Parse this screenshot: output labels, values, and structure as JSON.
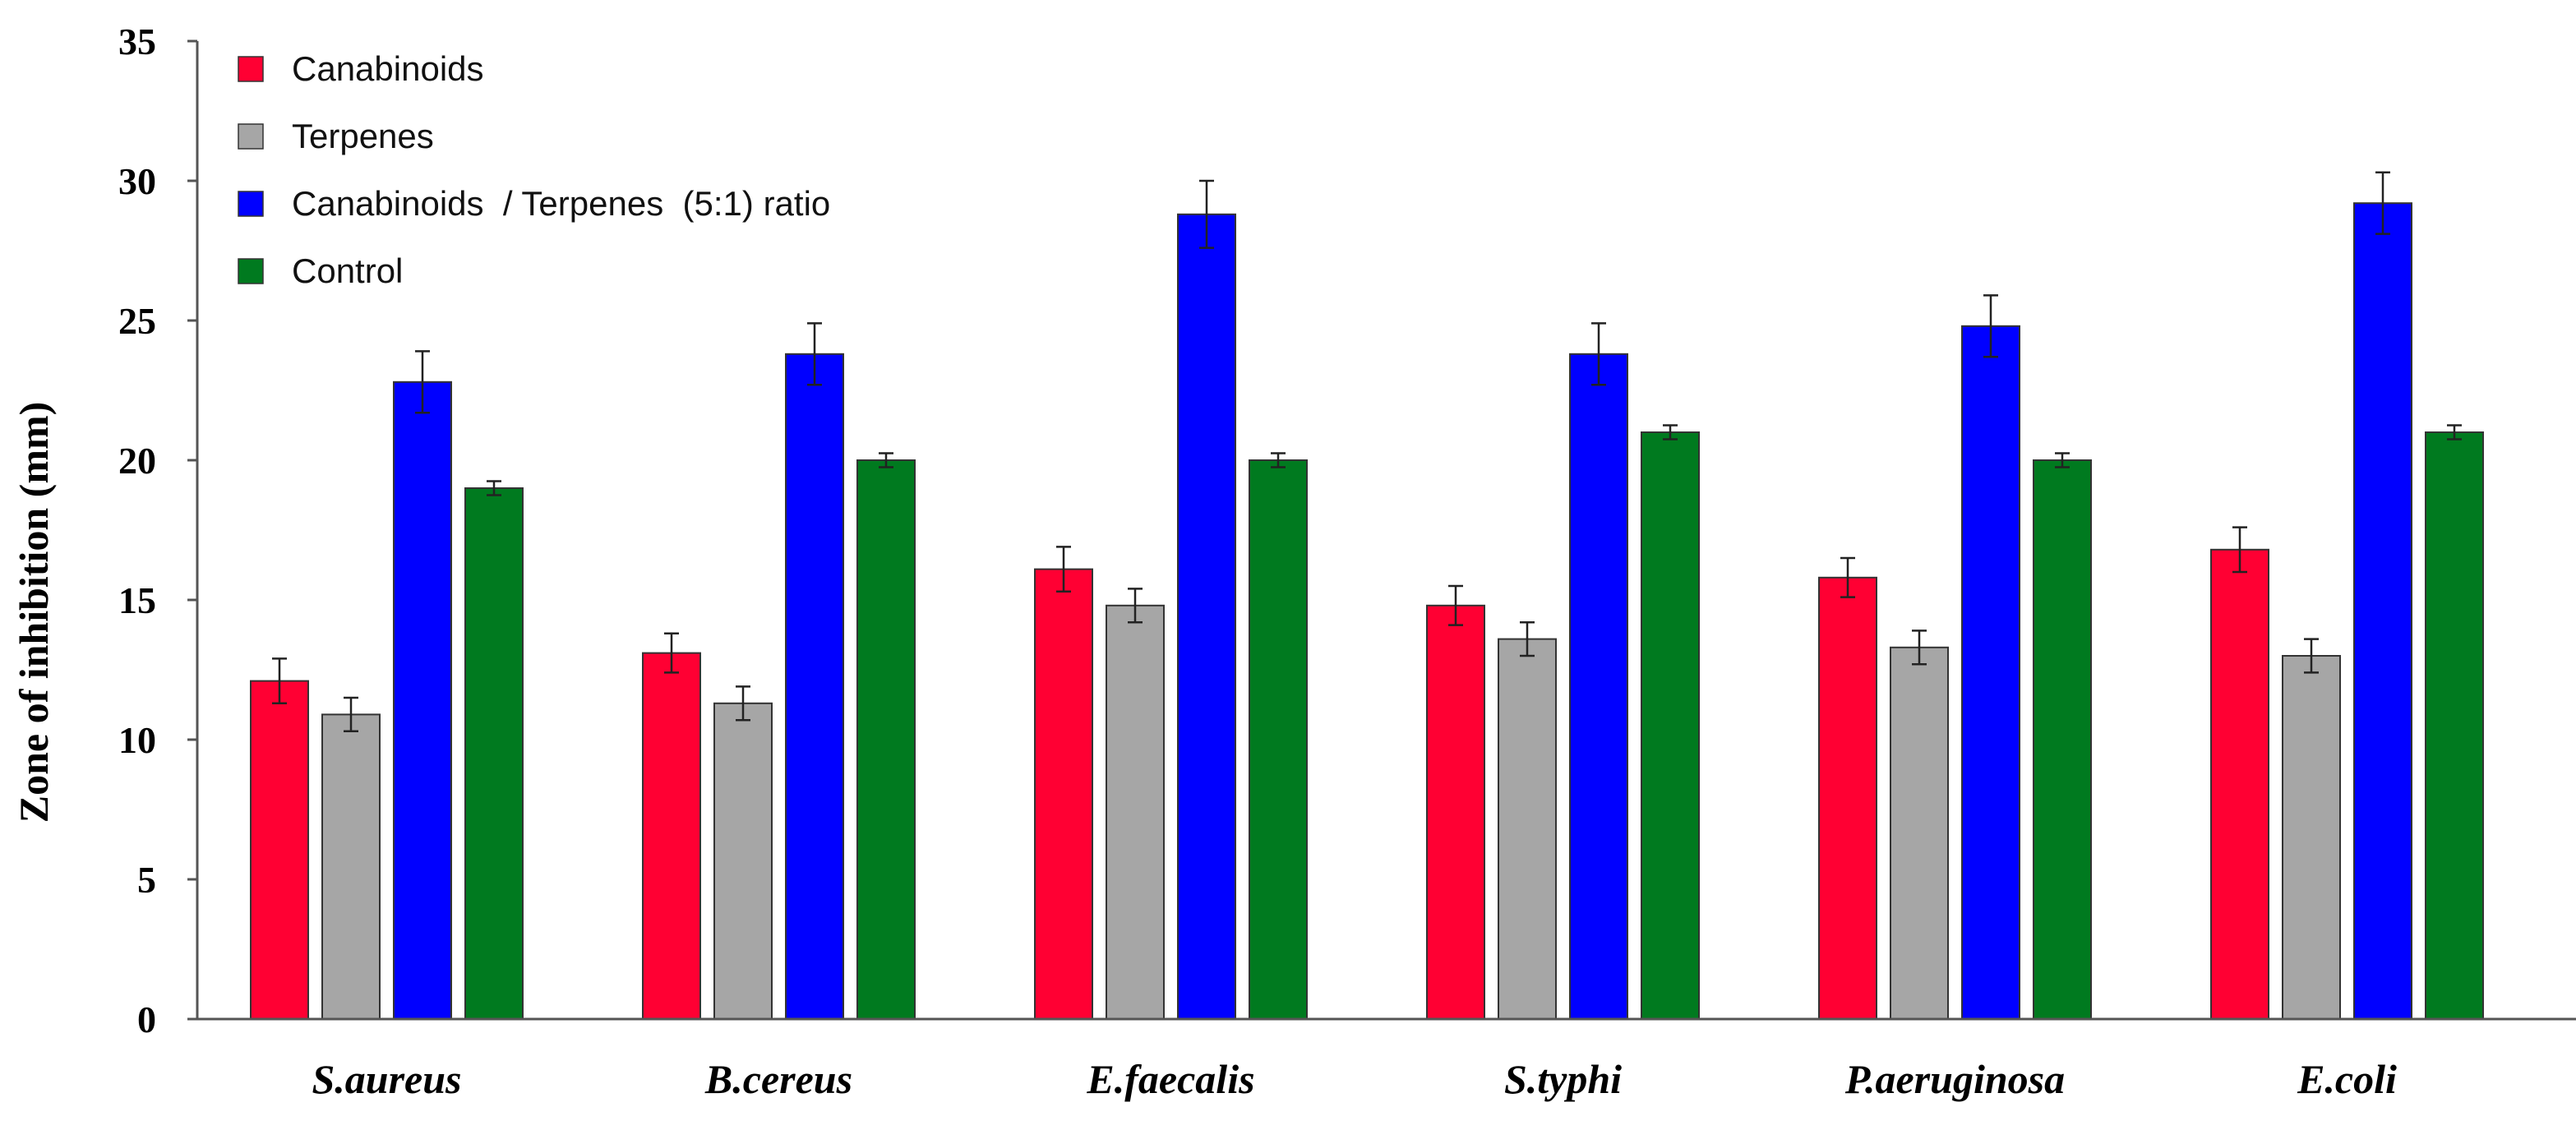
{
  "chart_data": {
    "type": "bar",
    "title": "",
    "xlabel": "",
    "ylabel": "Zone of inhibition (mm)",
    "ylim": [
      0,
      35
    ],
    "yticks": [
      "0",
      "5",
      "10",
      "15",
      "20",
      "25",
      "30",
      "35"
    ],
    "categories": [
      "S.aureus",
      "B.cereus",
      "E.faecalis",
      "S.typhi",
      "P.aeruginosa",
      "E.coli"
    ],
    "grid": false,
    "legend_position": "top-left",
    "series": [
      {
        "name": "Canabinoids",
        "color": "#ff0033",
        "values": [
          12.1,
          13.1,
          16.1,
          14.8,
          15.8,
          16.8
        ],
        "errors": [
          0.8,
          0.7,
          0.8,
          0.7,
          0.7,
          0.8
        ]
      },
      {
        "name": "Terpenes",
        "color": "#a6a6a6",
        "values": [
          10.9,
          11.3,
          14.8,
          13.6,
          13.3,
          13.0
        ],
        "errors": [
          0.6,
          0.6,
          0.6,
          0.6,
          0.6,
          0.6
        ]
      },
      {
        "name": "Canabinoids  / Terpenes  (5:1) ratio",
        "color": "#0000ff",
        "values": [
          22.8,
          23.8,
          28.8,
          23.8,
          24.8,
          29.2
        ],
        "errors": [
          1.1,
          1.1,
          1.2,
          1.1,
          1.1,
          1.1
        ]
      },
      {
        "name": "Control",
        "color": "#007a1f",
        "values": [
          19.0,
          20.0,
          20.0,
          21.0,
          20.0,
          21.0
        ],
        "errors": [
          0.25,
          0.25,
          0.25,
          0.25,
          0.25,
          0.25
        ]
      }
    ]
  }
}
